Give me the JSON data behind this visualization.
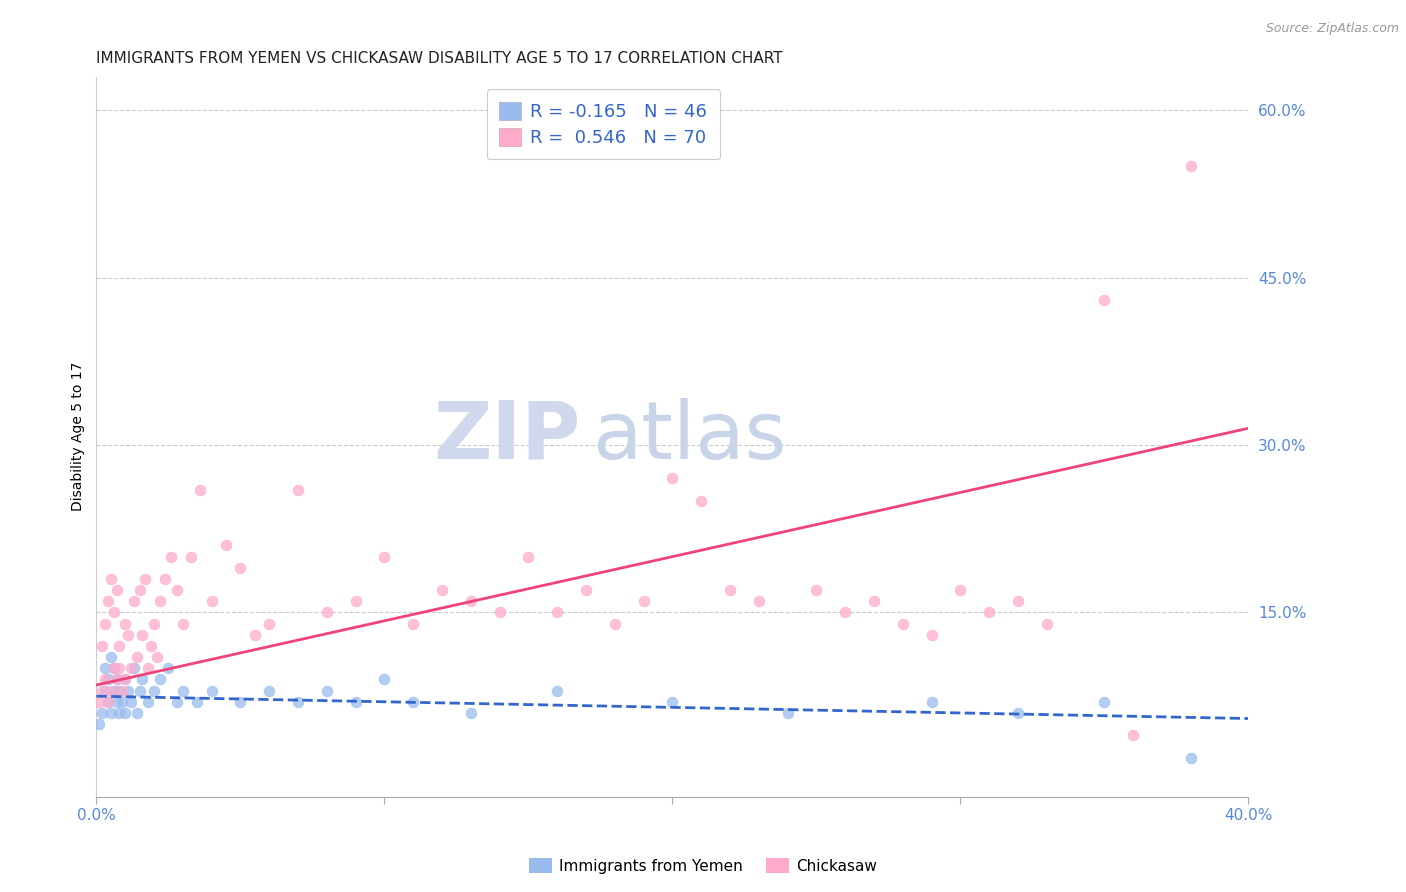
{
  "title": "IMMIGRANTS FROM YEMEN VS CHICKASAW DISABILITY AGE 5 TO 17 CORRELATION CHART",
  "source": "Source: ZipAtlas.com",
  "ylabel": "Disability Age 5 to 17",
  "x_min": 0.0,
  "x_max": 0.4,
  "y_min": -0.015,
  "y_max": 0.63,
  "y_ticks_right": [
    0.15,
    0.3,
    0.45,
    0.6
  ],
  "y_tick_labels_right": [
    "15.0%",
    "30.0%",
    "45.0%",
    "60.0%"
  ],
  "grid_color": "#cccccc",
  "background_color": "#ffffff",
  "legend_R1": "R = -0.165",
  "legend_N1": "N = 46",
  "legend_R2": "R =  0.546",
  "legend_N2": "N = 70",
  "color_blue": "#99bbee",
  "color_pink": "#ffaacc",
  "color_blue_line": "#3366cc",
  "color_pink_line": "#ee4477",
  "color_axis_labels": "#5588dd",
  "watermark_zip": "ZIP",
  "watermark_atlas": "atlas",
  "watermark_color_zip": "#d0d8ee",
  "watermark_color_atlas": "#c8d4e8",
  "series1_label": "Immigrants from Yemen",
  "series2_label": "Chickasaw",
  "blue_scatter_x": [
    0.001,
    0.002,
    0.003,
    0.003,
    0.004,
    0.004,
    0.005,
    0.005,
    0.006,
    0.006,
    0.007,
    0.007,
    0.008,
    0.008,
    0.009,
    0.01,
    0.01,
    0.011,
    0.012,
    0.013,
    0.014,
    0.015,
    0.016,
    0.018,
    0.02,
    0.022,
    0.025,
    0.028,
    0.03,
    0.035,
    0.04,
    0.05,
    0.06,
    0.07,
    0.08,
    0.09,
    0.1,
    0.11,
    0.13,
    0.16,
    0.2,
    0.24,
    0.29,
    0.32,
    0.35,
    0.38
  ],
  "blue_scatter_y": [
    0.05,
    0.06,
    0.08,
    0.1,
    0.07,
    0.09,
    0.06,
    0.11,
    0.08,
    0.1,
    0.07,
    0.09,
    0.06,
    0.08,
    0.07,
    0.09,
    0.06,
    0.08,
    0.07,
    0.1,
    0.06,
    0.08,
    0.09,
    0.07,
    0.08,
    0.09,
    0.1,
    0.07,
    0.08,
    0.07,
    0.08,
    0.07,
    0.08,
    0.07,
    0.08,
    0.07,
    0.09,
    0.07,
    0.06,
    0.08,
    0.07,
    0.06,
    0.07,
    0.06,
    0.07,
    0.02
  ],
  "pink_scatter_x": [
    0.001,
    0.002,
    0.002,
    0.003,
    0.003,
    0.004,
    0.004,
    0.005,
    0.005,
    0.006,
    0.006,
    0.007,
    0.007,
    0.008,
    0.008,
    0.009,
    0.01,
    0.01,
    0.011,
    0.012,
    0.013,
    0.014,
    0.015,
    0.016,
    0.017,
    0.018,
    0.019,
    0.02,
    0.021,
    0.022,
    0.024,
    0.026,
    0.028,
    0.03,
    0.033,
    0.036,
    0.04,
    0.045,
    0.05,
    0.055,
    0.06,
    0.07,
    0.08,
    0.09,
    0.1,
    0.11,
    0.12,
    0.13,
    0.14,
    0.15,
    0.16,
    0.17,
    0.18,
    0.19,
    0.2,
    0.21,
    0.22,
    0.23,
    0.25,
    0.26,
    0.27,
    0.28,
    0.29,
    0.3,
    0.31,
    0.32,
    0.33,
    0.35,
    0.36,
    0.38
  ],
  "pink_scatter_y": [
    0.07,
    0.08,
    0.12,
    0.09,
    0.14,
    0.07,
    0.16,
    0.08,
    0.18,
    0.1,
    0.15,
    0.09,
    0.17,
    0.1,
    0.12,
    0.08,
    0.14,
    0.09,
    0.13,
    0.1,
    0.16,
    0.11,
    0.17,
    0.13,
    0.18,
    0.1,
    0.12,
    0.14,
    0.11,
    0.16,
    0.18,
    0.2,
    0.17,
    0.14,
    0.2,
    0.26,
    0.16,
    0.21,
    0.19,
    0.13,
    0.14,
    0.26,
    0.15,
    0.16,
    0.2,
    0.14,
    0.17,
    0.16,
    0.15,
    0.2,
    0.15,
    0.17,
    0.14,
    0.16,
    0.27,
    0.25,
    0.17,
    0.16,
    0.17,
    0.15,
    0.16,
    0.14,
    0.13,
    0.17,
    0.15,
    0.16,
    0.14,
    0.43,
    0.04,
    0.55
  ],
  "blue_trend_x": [
    0.0,
    0.4
  ],
  "blue_trend_y": [
    0.075,
    0.055
  ],
  "pink_trend_x": [
    0.0,
    0.4
  ],
  "pink_trend_y": [
    0.085,
    0.315
  ],
  "title_fontsize": 11,
  "axis_label_fontsize": 10,
  "tick_fontsize": 11,
  "legend_fontsize": 13
}
